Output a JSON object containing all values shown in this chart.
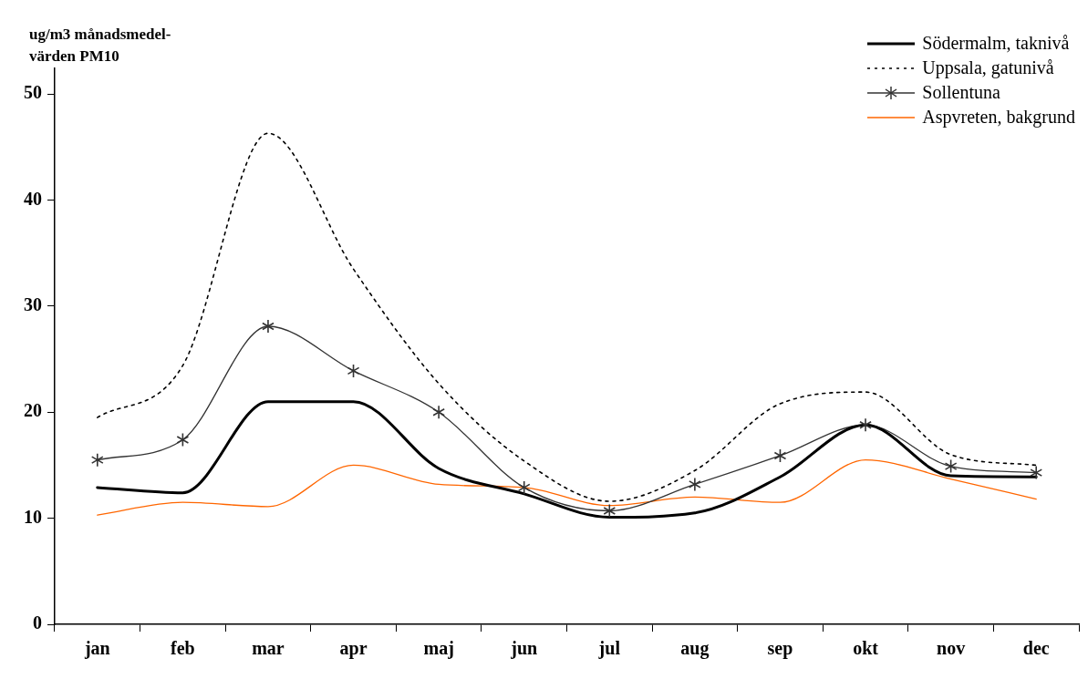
{
  "chart_data": {
    "type": "line",
    "ylabel": "ug/m3 månadsmedel-värden PM10",
    "categories": [
      "jan",
      "feb",
      "mar",
      "apr",
      "maj",
      "jun",
      "jul",
      "aug",
      "sep",
      "okt",
      "nov",
      "dec"
    ],
    "ylim": [
      0,
      55
    ],
    "yticks": [
      0,
      10,
      20,
      30,
      40,
      50
    ],
    "grid": false,
    "legend": "top right",
    "series": [
      {
        "name": "Södermalm, taknivå",
        "color": "#000000",
        "line_style": "solid",
        "marker": "none",
        "values": [
          12.9,
          12.4,
          21.0,
          21.0,
          14.7,
          12.3,
          10.1,
          10.5,
          13.9,
          18.8,
          14.0,
          13.9
        ]
      },
      {
        "name": "Uppsala, gatunivå",
        "color": "#000000",
        "line_style": "dotted",
        "marker": "none",
        "values": [
          19.5,
          24.4,
          46.3,
          33.5,
          22.7,
          15.4,
          11.6,
          14.5,
          20.8,
          21.9,
          16.0,
          15.0
        ]
      },
      {
        "name": "Sollentuna",
        "color": "#333333",
        "line_style": "solid",
        "marker": "cross",
        "values": [
          15.5,
          17.4,
          28.1,
          23.9,
          20.0,
          12.9,
          10.7,
          13.2,
          15.9,
          18.8,
          14.9,
          14.3
        ]
      },
      {
        "name": "Aspvreten, bakgrund",
        "color": "#ff6600",
        "line_style": "solid",
        "marker": "none",
        "values": [
          10.3,
          11.5,
          11.1,
          15.0,
          13.2,
          12.9,
          11.2,
          12.0,
          11.5,
          15.5,
          13.7,
          11.8
        ]
      }
    ]
  }
}
